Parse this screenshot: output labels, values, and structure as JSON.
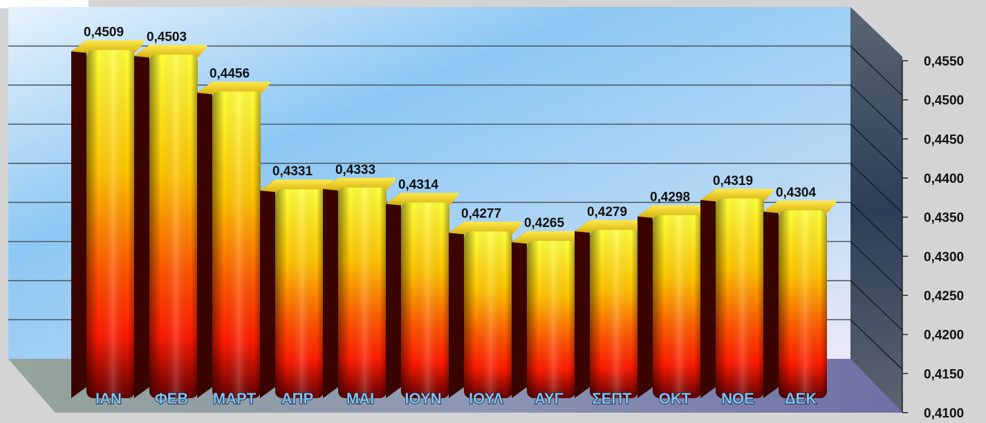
{
  "chart_data": {
    "type": "bar",
    "title": "",
    "xlabel": "",
    "ylabel": "",
    "categories": [
      "ΙΑΝ",
      "ΦΕΒ",
      "ΜΑΡΤ",
      "ΑΠΡ",
      "ΜΑΙ",
      "ΙΟΥΝ",
      "ΙΟΥΛ",
      "ΑΥΓ",
      "ΣΕΠΤ",
      "ΟΚΤ",
      "ΝΟΕ",
      "ΔΕΚ"
    ],
    "values": [
      0.4509,
      0.4503,
      0.4456,
      0.4331,
      0.4333,
      0.4314,
      0.4277,
      0.4265,
      0.4279,
      0.4298,
      0.4319,
      0.4304
    ],
    "value_labels": [
      "0,4509",
      "0,4503",
      "0,4456",
      "0,4331",
      "0,4333",
      "0,4314",
      "0,4277",
      "0,4265",
      "0,4279",
      "0,4298",
      "0,4319",
      "0,4304"
    ],
    "ylim": [
      0.41,
      0.455
    ],
    "y_ticks": [
      0.41,
      0.415,
      0.42,
      0.425,
      0.43,
      0.435,
      0.44,
      0.445,
      0.45,
      0.455
    ],
    "y_tick_labels": [
      "0,4100",
      "0,4150",
      "0,4200",
      "0,4250",
      "0,4300",
      "0,4350",
      "0,4400",
      "0,4450",
      "0,4500",
      "0,4550"
    ],
    "y_axis_side": "right",
    "grid": true,
    "legend": "none",
    "style": "3d",
    "colors": {
      "bar_top": "#ffff3a",
      "bar_mid": "#ffb400",
      "bar_low": "#ff1a00",
      "bar_bottom": "#650000",
      "wall": "#a9d4f5",
      "floor": "#7a7da8",
      "category_text": "#7fc3ee"
    }
  }
}
